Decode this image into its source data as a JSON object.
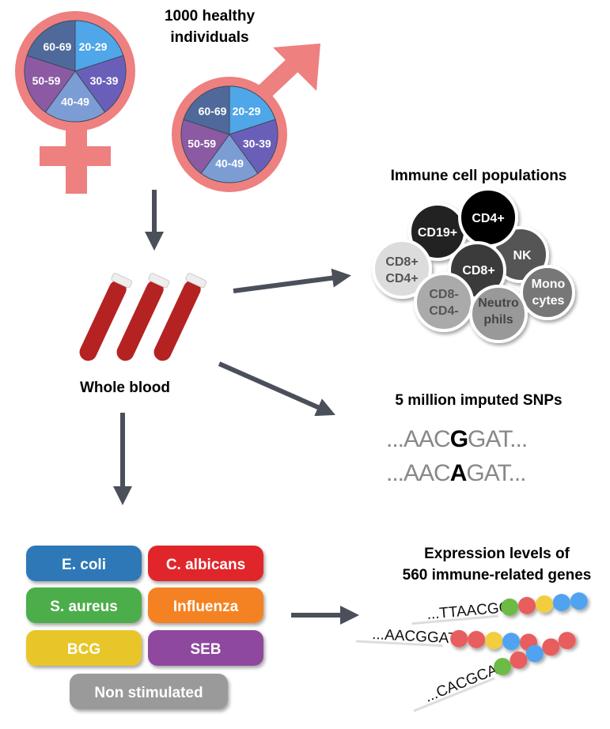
{
  "cohort": {
    "title_line1": "1000 healthy individuals",
    "line1": "1000 healthy",
    "line2": "individuals",
    "age_groups": [
      "20-29",
      "30-39",
      "40-49",
      "50-59",
      "60-69"
    ],
    "age_colors": [
      "#4fa6e8",
      "#6a5fb8",
      "#7c9dd3",
      "#8b5aa3",
      "#4f6a9a"
    ],
    "symbol_color": "#ee8080"
  },
  "blood": {
    "label": "Whole blood"
  },
  "immune": {
    "title": "Immune cell populations",
    "cells": {
      "cd19": "CD19+",
      "cd4": "CD4+",
      "nk": "NK",
      "dp1": "CD8+",
      "dp2": "CD4+",
      "cd8": "CD8+",
      "dn1": "CD8-",
      "dn2": "CD4-",
      "neu1": "Neutro",
      "neu2": "phils",
      "mono1": "Mono",
      "mono2": "cytes"
    }
  },
  "snps": {
    "title": "5 million imputed SNPs",
    "seq1": {
      "pre": "...AAC",
      "allele": "G",
      "post": "GAT..."
    },
    "seq2": {
      "pre": "...AAC",
      "allele": "A",
      "post": "GAT..."
    }
  },
  "stimuli": [
    {
      "label": "E. coli",
      "color": "#2f78b7"
    },
    {
      "label": "C. albicans",
      "color": "#e0282a"
    },
    {
      "label": "S. aureus",
      "color": "#4cae4c"
    },
    {
      "label": "Influenza",
      "color": "#f58220"
    },
    {
      "label": "BCG",
      "color": "#e8c62a"
    },
    {
      "label": "SEB",
      "color": "#8e4a9e"
    },
    {
      "label": "Non stimulated",
      "color": "#9a9a9a"
    }
  ],
  "expression": {
    "line1": "Expression levels of",
    "line2": "560 immune-related genes",
    "reads": [
      {
        "seq": "...TTAACGG",
        "beads": [
          "#6cbb45",
          "#e85d5d",
          "#f2cd3c",
          "#4fa3ef",
          "#4fa3ef"
        ]
      },
      {
        "seq": "...AACGGAT",
        "beads": [
          "#e85d5d",
          "#e85d5d",
          "#f2cd3c",
          "#4fa3ef",
          "#e85d5d"
        ]
      },
      {
        "seq": "...CACGCAA",
        "beads": [
          "#6cbb45",
          "#e85d5d",
          "#4fa3ef",
          "#e85d5d",
          "#e85d5d"
        ]
      }
    ]
  }
}
